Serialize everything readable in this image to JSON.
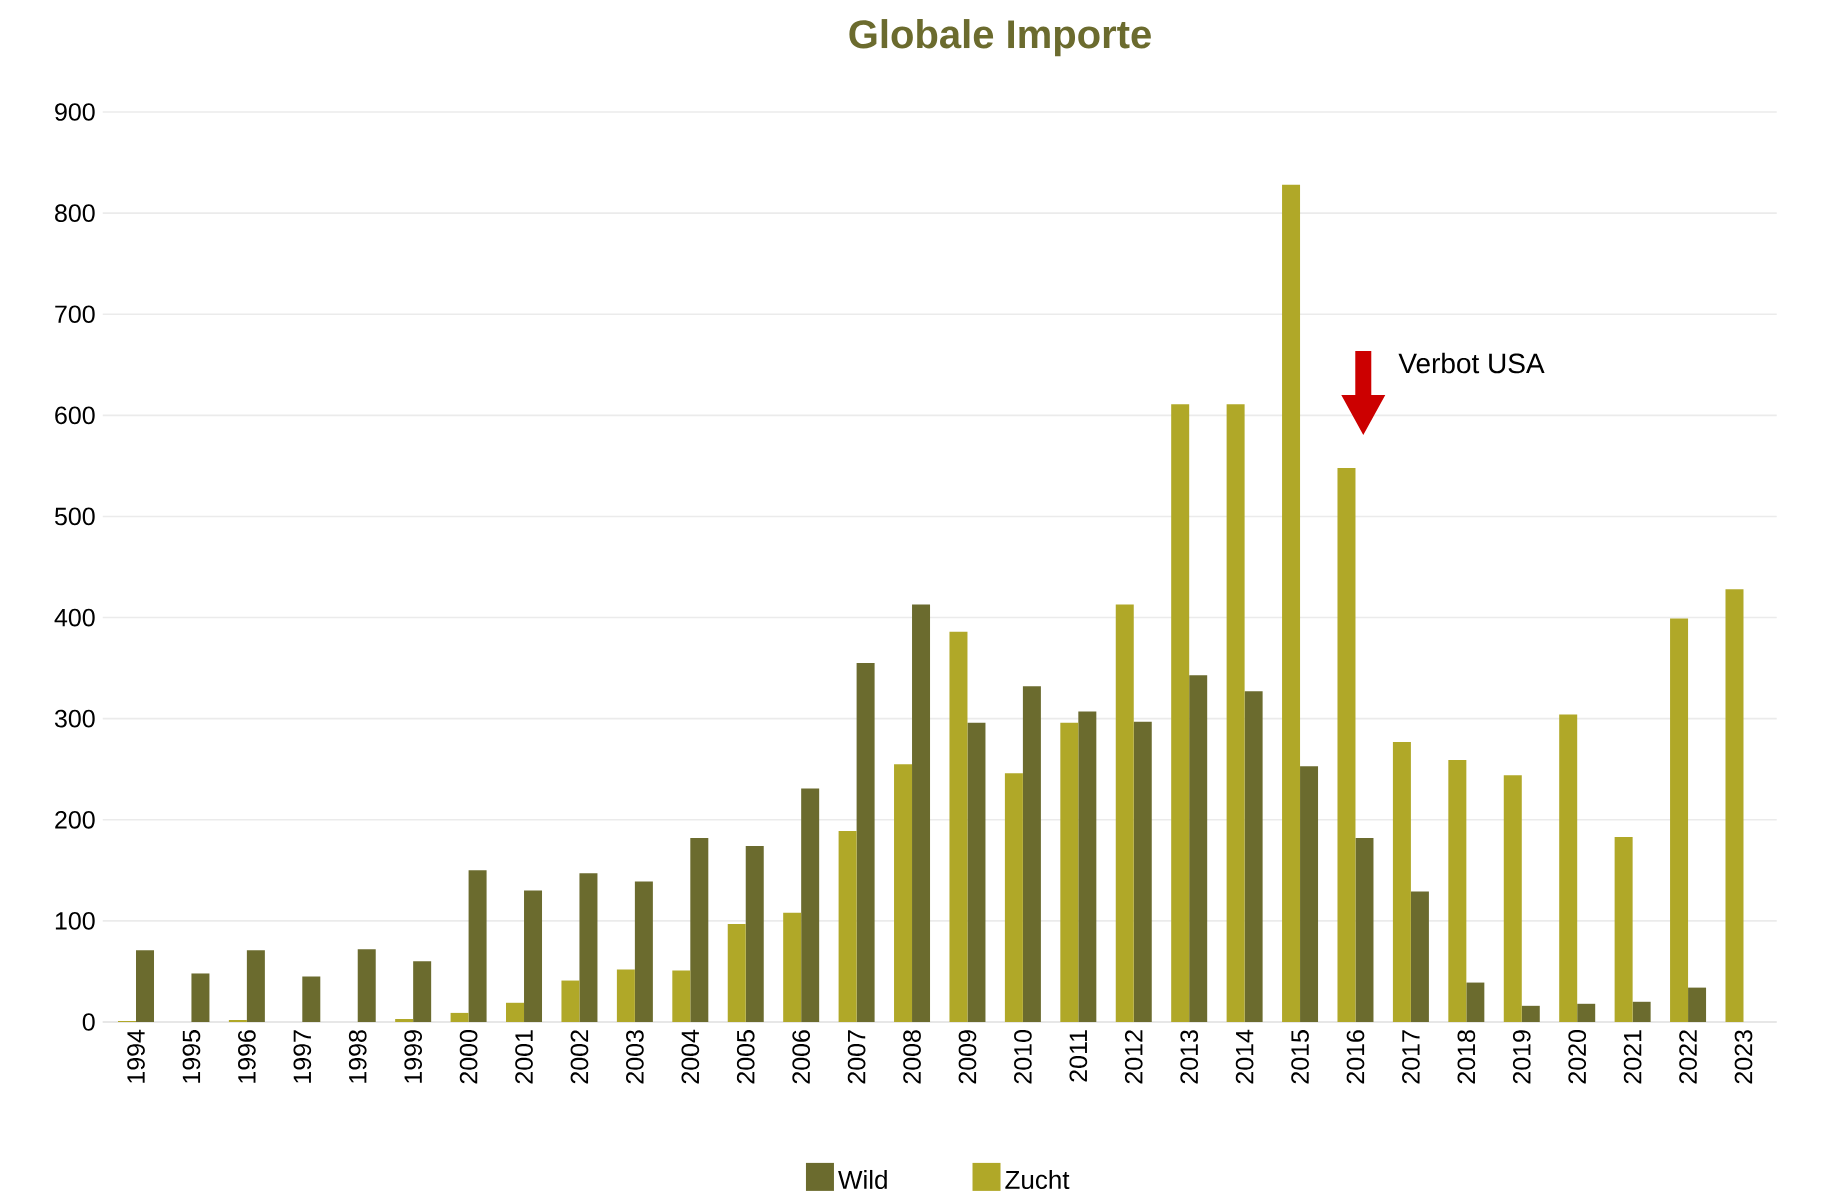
{
  "chart_data": {
    "type": "bar",
    "title": "Globale Importe",
    "categories": [
      "1994",
      "1995",
      "1996",
      "1997",
      "1998",
      "1999",
      "2000",
      "2001",
      "2002",
      "2003",
      "2004",
      "2005",
      "2006",
      "2007",
      "2008",
      "2009",
      "2010",
      "2011",
      "2012",
      "2013",
      "2014",
      "2015",
      "2016",
      "2017",
      "2018",
      "2019",
      "2020",
      "2021",
      "2022",
      "2023"
    ],
    "series": [
      {
        "name": "Wild",
        "color": "#6b6b2e",
        "values": [
          71,
          48,
          71,
          45,
          72,
          60,
          150,
          130,
          147,
          139,
          182,
          174,
          231,
          355,
          413,
          296,
          332,
          307,
          297,
          343,
          327,
          253,
          182,
          129,
          39,
          16,
          18,
          20,
          34,
          null
        ]
      },
      {
        "name": "Zucht",
        "color": "#b0a828",
        "values": [
          1,
          0,
          2,
          0,
          0,
          3,
          9,
          19,
          41,
          52,
          51,
          97,
          108,
          189,
          255,
          386,
          246,
          296,
          413,
          611,
          611,
          828,
          548,
          277,
          259,
          244,
          304,
          183,
          399,
          428
        ]
      }
    ],
    "ylim": [
      0,
      900
    ],
    "yticks": [
      0,
      100,
      200,
      300,
      400,
      500,
      600,
      700,
      800,
      900
    ],
    "grid": "y",
    "legend": "bottom",
    "annotations": [
      "Verbot USA"
    ]
  }
}
